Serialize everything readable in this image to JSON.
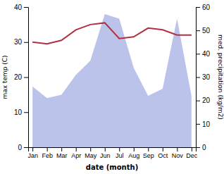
{
  "chart_data": {
    "type": "line",
    "categories": [
      "Jan",
      "Feb",
      "Mar",
      "Apr",
      "May",
      "Jun",
      "Jul",
      "Aug",
      "Sep",
      "Oct",
      "Nov",
      "Dec"
    ],
    "series": [
      {
        "type": "area",
        "axis": "y2",
        "color": "#b0b8e8",
        "values": [
          26.0,
          21.0,
          22.5,
          31.0,
          37.0,
          57.0,
          55.0,
          34.0,
          22.0,
          25.0,
          55.0,
          22.0
        ]
      },
      {
        "type": "line",
        "color": "#b03040",
        "values": [
          30.0,
          29.5,
          30.5,
          33.5,
          35.0,
          35.5,
          31.0,
          31.5,
          34.0,
          33.5,
          32.0,
          32.0
        ]
      }
    ],
    "xlabel": "date (month)",
    "ylabel": "max temp (C)",
    "y2label": "med. precipitation (kg/m2)",
    "ylim": [
      0,
      40
    ],
    "yticks": [
      0,
      10,
      20,
      30,
      40
    ],
    "y2lim": [
      0,
      60
    ],
    "y2ticks": [
      0,
      10,
      20,
      30,
      40,
      50,
      60
    ],
    "grid": false
  }
}
